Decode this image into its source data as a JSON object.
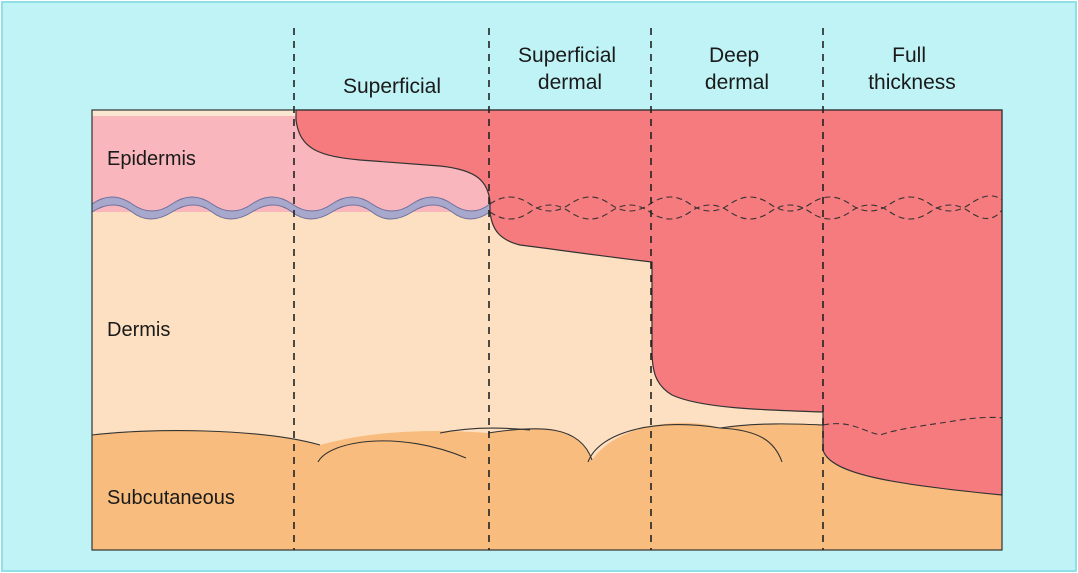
{
  "columns": {
    "superficial": [
      "Superficial"
    ],
    "superficial_dermal": [
      "Superficial",
      "dermal"
    ],
    "deep_dermal": [
      "Deep",
      "dermal"
    ],
    "full_thickness": [
      "Full",
      "thickness"
    ]
  },
  "layers": {
    "epidermis": "Epidermis",
    "dermis": "Dermis",
    "subcutaneous": "Subcutaneous"
  },
  "colors": {
    "background": "#bff3f5",
    "border": "#8fe0e6",
    "epidermis": "#f9b7bd",
    "dermis": "#fde0c2",
    "subcutaneous": "#f8bd7e",
    "burn": "#f67b7e",
    "basement_membrane": "#a7a8cc",
    "outline": "#333333"
  }
}
